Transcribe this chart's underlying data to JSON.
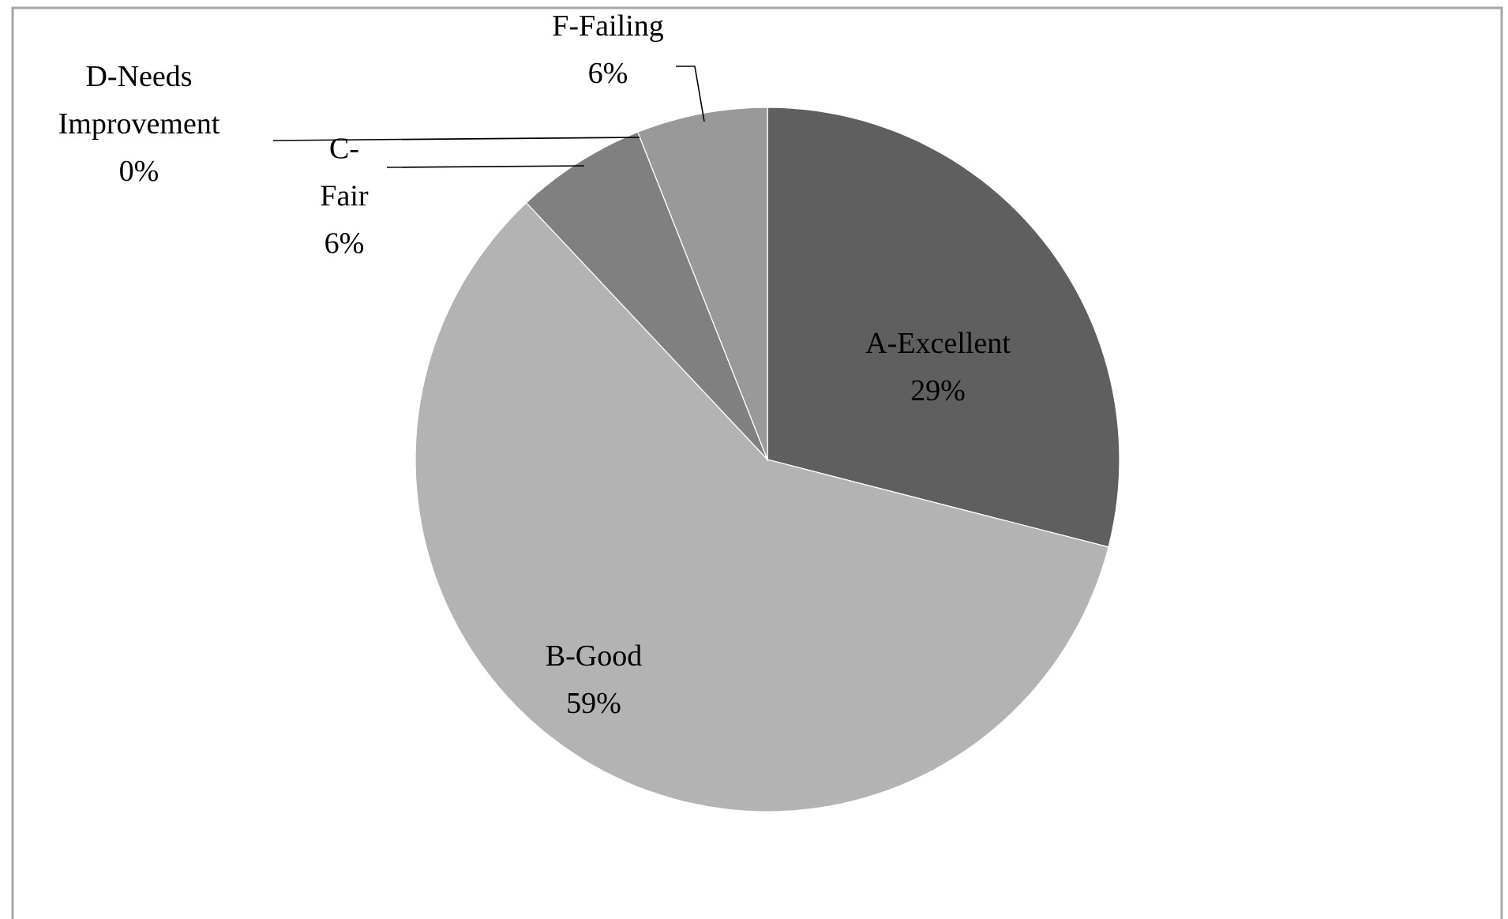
{
  "chart_data": {
    "type": "pie",
    "categories": [
      "A-Excellent",
      "B-Good",
      "C-Fair",
      "D-Needs Improvement",
      "F-Failing"
    ],
    "values": [
      29,
      59,
      6,
      0,
      6
    ],
    "value_labels": [
      "29%",
      "59%",
      "6%",
      "0%",
      "6%"
    ],
    "colors": [
      "#5f5f5f",
      "#b3b3b3",
      "#808080",
      "#6a6a6a",
      "#999999"
    ]
  }
}
